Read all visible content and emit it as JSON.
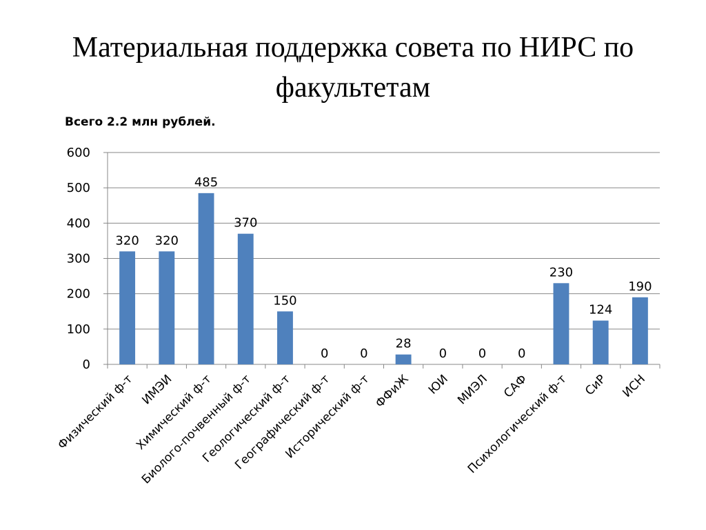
{
  "slide": {
    "title": "Материальная поддержка совета по НИРС по факультетам",
    "subtitle": "Всего 2.2 млн рублей."
  },
  "chart_data": {
    "type": "bar",
    "categories": [
      "Физический ф-т",
      "ИМЭИ",
      "Химический ф-т",
      "Биолого-почвенный ф-т",
      "Геологический ф-т",
      "Географический ф-т",
      "Исторический ф-т",
      "ФФиЖ",
      "ЮИ",
      "МИЭЛ",
      "САФ",
      "Психологический ф-т",
      "СиР",
      "ИСН"
    ],
    "values": [
      320,
      320,
      485,
      370,
      150,
      0,
      0,
      28,
      0,
      0,
      0,
      230,
      124,
      190
    ],
    "ylim": [
      0,
      600
    ],
    "yticks": [
      0,
      100,
      200,
      300,
      400,
      500,
      600
    ],
    "grid": true,
    "legend": "none",
    "bar_color": "#4f81bd"
  }
}
